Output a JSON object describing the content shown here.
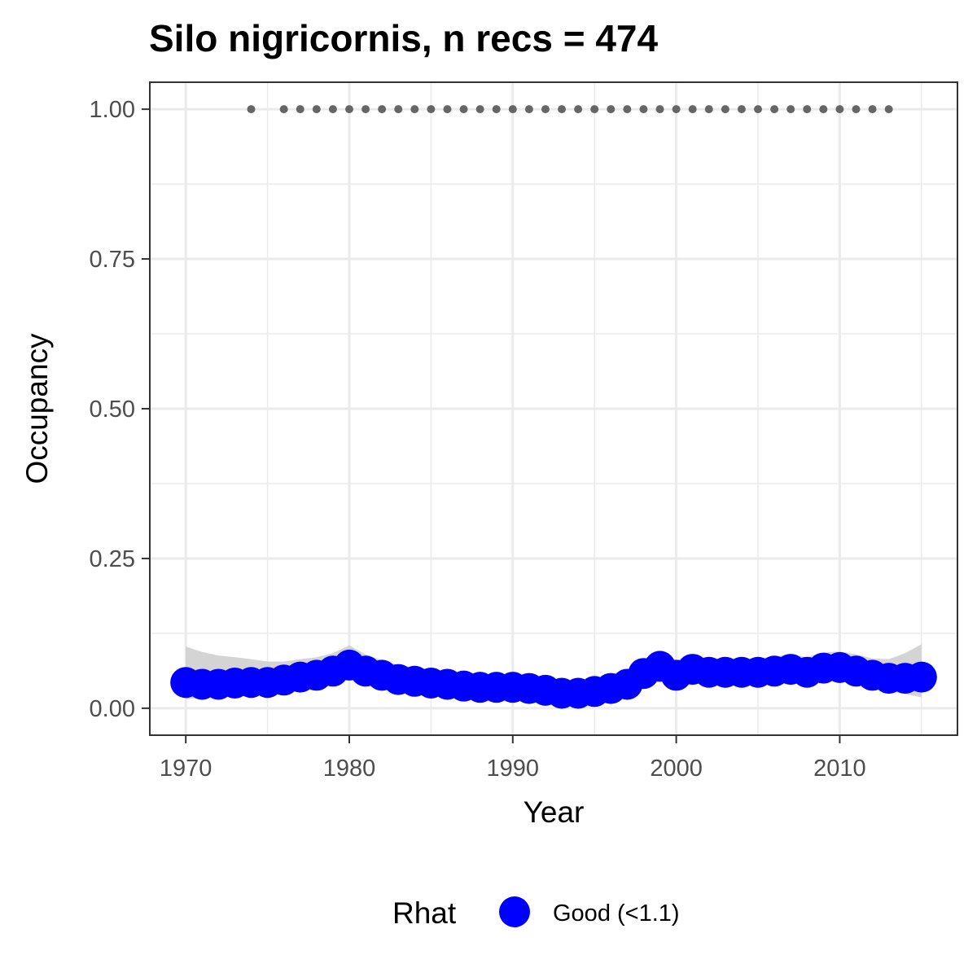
{
  "chart_data": {
    "type": "line",
    "title": "Silo nigricornis, n recs = 474",
    "xlabel": "Year",
    "ylabel": "Occupancy",
    "xlim": [
      1967.8,
      2017.2
    ],
    "ylim": [
      -0.045,
      1.045
    ],
    "x_ticks": [
      1970,
      1980,
      1990,
      2000,
      2010
    ],
    "y_ticks": [
      0,
      0.25,
      0.5,
      0.75,
      1
    ],
    "y_tick_labels": [
      "0.00",
      "0.25",
      "0.50",
      "0.75",
      "1.00"
    ],
    "grid": true,
    "legend": {
      "title": "Rhat",
      "placement": "bottom",
      "entries": [
        {
          "label": "Good (<1.1)",
          "color": "#0000ff"
        }
      ]
    },
    "colors": {
      "estimate": "#0000ff",
      "ribbon": "#cccccc",
      "record_years": "#666666"
    },
    "series": [
      {
        "name": "Good (<1.1)",
        "x": [
          1970,
          1971,
          1972,
          1973,
          1974,
          1975,
          1976,
          1977,
          1978,
          1979,
          1980,
          1981,
          1982,
          1983,
          1984,
          1985,
          1986,
          1987,
          1988,
          1989,
          1990,
          1991,
          1992,
          1993,
          1994,
          1995,
          1996,
          1997,
          1998,
          1999,
          2000,
          2001,
          2002,
          2003,
          2004,
          2005,
          2006,
          2007,
          2008,
          2009,
          2010,
          2011,
          2012,
          2013,
          2014,
          2015
        ],
        "values": [
          0.043,
          0.04,
          0.04,
          0.042,
          0.043,
          0.043,
          0.047,
          0.052,
          0.055,
          0.062,
          0.072,
          0.062,
          0.055,
          0.048,
          0.045,
          0.042,
          0.04,
          0.037,
          0.035,
          0.035,
          0.035,
          0.033,
          0.03,
          0.025,
          0.025,
          0.028,
          0.033,
          0.04,
          0.058,
          0.07,
          0.055,
          0.065,
          0.06,
          0.06,
          0.06,
          0.06,
          0.062,
          0.065,
          0.06,
          0.067,
          0.068,
          0.062,
          0.055,
          0.05,
          0.05,
          0.052
        ],
        "lower": [
          0.015,
          0.018,
          0.02,
          0.023,
          0.025,
          0.026,
          0.03,
          0.034,
          0.038,
          0.043,
          0.05,
          0.043,
          0.037,
          0.031,
          0.028,
          0.025,
          0.023,
          0.021,
          0.019,
          0.019,
          0.019,
          0.017,
          0.015,
          0.012,
          0.012,
          0.014,
          0.018,
          0.024,
          0.038,
          0.048,
          0.037,
          0.045,
          0.041,
          0.041,
          0.041,
          0.041,
          0.042,
          0.044,
          0.04,
          0.045,
          0.045,
          0.04,
          0.034,
          0.028,
          0.024,
          0.018
        ],
        "upper": [
          0.103,
          0.094,
          0.088,
          0.085,
          0.082,
          0.078,
          0.078,
          0.082,
          0.085,
          0.092,
          0.105,
          0.09,
          0.08,
          0.072,
          0.068,
          0.065,
          0.062,
          0.058,
          0.056,
          0.056,
          0.056,
          0.054,
          0.05,
          0.045,
          0.045,
          0.048,
          0.054,
          0.062,
          0.082,
          0.095,
          0.08,
          0.088,
          0.083,
          0.083,
          0.083,
          0.083,
          0.086,
          0.09,
          0.085,
          0.093,
          0.095,
          0.09,
          0.083,
          0.082,
          0.092,
          0.107
        ]
      }
    ],
    "record_years": [
      1974,
      1976,
      1977,
      1978,
      1979,
      1980,
      1981,
      1982,
      1983,
      1984,
      1985,
      1986,
      1987,
      1988,
      1989,
      1990,
      1991,
      1992,
      1993,
      1994,
      1995,
      1996,
      1997,
      1998,
      1999,
      2000,
      2001,
      2002,
      2003,
      2004,
      2005,
      2006,
      2007,
      2008,
      2009,
      2010,
      2011,
      2012,
      2013
    ],
    "record_value": 1.0
  }
}
